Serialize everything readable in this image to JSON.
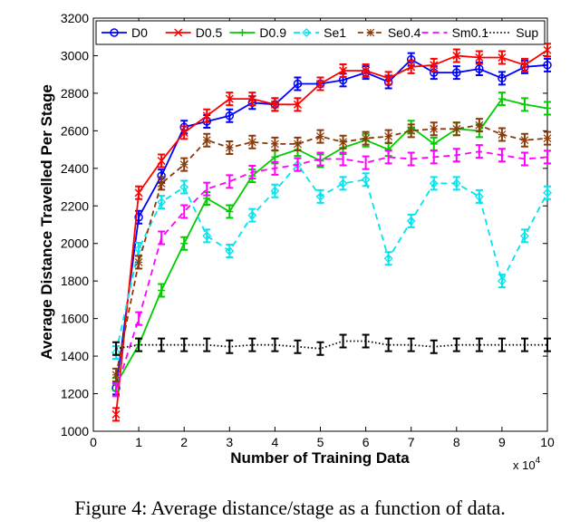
{
  "caption": "Figure 4: Average distance/stage as a function of data.",
  "chart_data": {
    "type": "line",
    "title": "",
    "xlabel": "Number of Training Data",
    "ylabel": "Average Distance Travelled Per Stage",
    "x_multiplier_label": "x 10",
    "x_multiplier_exp": "4",
    "xlim": [
      0,
      10
    ],
    "ylim": [
      1000,
      3200
    ],
    "xticks": [
      "0",
      "1",
      "2",
      "3",
      "4",
      "5",
      "6",
      "7",
      "8",
      "9",
      "10"
    ],
    "yticks": [
      "1000",
      "1200",
      "1400",
      "1600",
      "1800",
      "2000",
      "2200",
      "2400",
      "2600",
      "2800",
      "3000",
      "3200"
    ],
    "grid": false,
    "legend_position": "top",
    "x": [
      0.5,
      1,
      1.5,
      2,
      2.5,
      3,
      3.5,
      4,
      4.5,
      5,
      5.5,
      6,
      6.5,
      7,
      7.5,
      8,
      8.5,
      9,
      9.5,
      10
    ],
    "series": [
      {
        "name": "D0",
        "color": "#0000ff",
        "dash": "",
        "marker": "circle",
        "values": [
          1230,
          2140,
          2360,
          2620,
          2650,
          2680,
          2750,
          2740,
          2850,
          2850,
          2870,
          2910,
          2860,
          2980,
          2910,
          2910,
          2930,
          2880,
          2940,
          2950
        ]
      },
      {
        "name": "D0.5",
        "color": "#ff0000",
        "dash": "",
        "marker": "x",
        "values": [
          1090,
          2270,
          2440,
          2590,
          2680,
          2770,
          2770,
          2740,
          2740,
          2850,
          2920,
          2920,
          2880,
          2940,
          2950,
          3000,
          2990,
          2990,
          2950,
          3030
        ]
      },
      {
        "name": "D0.9",
        "color": "#00cc00",
        "dash": "",
        "marker": "plus",
        "values": [
          1250,
          1460,
          1750,
          2000,
          2240,
          2170,
          2360,
          2460,
          2500,
          2440,
          2510,
          2550,
          2500,
          2620,
          2530,
          2610,
          2600,
          2770,
          2740,
          2720
        ]
      },
      {
        "name": "Se1",
        "color": "#00e5ee",
        "dash": "7 5",
        "marker": "diamond",
        "values": [
          1420,
          1970,
          2220,
          2300,
          2040,
          1960,
          2150,
          2280,
          2420,
          2250,
          2320,
          2340,
          1920,
          2120,
          2320,
          2320,
          2250,
          1800,
          2040,
          2270
        ]
      },
      {
        "name": "Se0.4",
        "color": "#8b3a0a",
        "dash": "6 4",
        "marker": "star",
        "values": [
          1300,
          1900,
          2320,
          2420,
          2550,
          2510,
          2540,
          2530,
          2530,
          2570,
          2540,
          2560,
          2570,
          2600,
          2610,
          2610,
          2630,
          2580,
          2550,
          2560
        ]
      },
      {
        "name": "Sm0.1",
        "color": "#ff00ff",
        "dash": "7 5",
        "marker": "none",
        "values": [
          1220,
          1600,
          2030,
          2170,
          2290,
          2330,
          2380,
          2400,
          2420,
          2450,
          2450,
          2430,
          2460,
          2450,
          2460,
          2470,
          2490,
          2470,
          2450,
          2460
        ]
      },
      {
        "name": "Sup",
        "color": "#000000",
        "dash": "1.5 2.5",
        "marker": "none",
        "values": [
          1440,
          1460,
          1460,
          1460,
          1460,
          1450,
          1460,
          1460,
          1450,
          1440,
          1480,
          1480,
          1460,
          1460,
          1450,
          1460,
          1460,
          1460,
          1460,
          1460
        ]
      }
    ]
  }
}
